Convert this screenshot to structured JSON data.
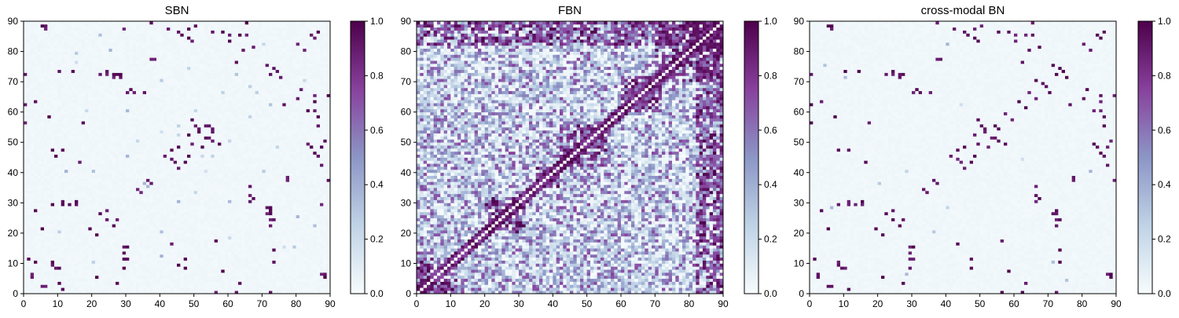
{
  "chart_data": [
    {
      "type": "heatmap",
      "title": "SBN",
      "xlim": [
        0,
        90
      ],
      "ylim": [
        0,
        90
      ],
      "x_ticks": [
        0,
        10,
        20,
        30,
        40,
        50,
        60,
        70,
        80,
        90
      ],
      "y_ticks": [
        0,
        10,
        20,
        30,
        40,
        50,
        60,
        70,
        80,
        90
      ],
      "colorbar": {
        "range": [
          0.0,
          1.0
        ],
        "ticks": [
          "0.0",
          "0.2",
          "0.4",
          "0.6",
          "0.8",
          "1.0"
        ]
      },
      "colormap": [
        "#f7fcfd",
        "#bfd3e6",
        "#8c96c6",
        "#88419d",
        "#4d004b"
      ],
      "density": "sparse",
      "strong_links": [
        [
          3,
          63
        ],
        [
          6,
          87
        ],
        [
          8,
          47
        ],
        [
          9,
          45
        ],
        [
          10,
          73
        ],
        [
          11,
          47
        ],
        [
          14,
          73
        ],
        [
          16,
          43
        ],
        [
          17,
          56
        ],
        [
          22,
          72
        ],
        [
          24,
          72
        ],
        [
          26,
          71
        ],
        [
          27,
          72
        ],
        [
          28,
          71
        ],
        [
          29,
          87
        ],
        [
          30,
          66
        ],
        [
          31,
          67
        ],
        [
          32,
          66
        ],
        [
          35,
          66
        ],
        [
          38,
          77
        ],
        [
          41,
          45
        ],
        [
          43,
          44
        ],
        [
          44,
          43
        ],
        [
          45,
          48
        ],
        [
          47,
          43
        ],
        [
          48,
          52
        ],
        [
          49,
          49
        ],
        [
          50,
          55
        ],
        [
          51,
          54
        ],
        [
          53,
          51
        ],
        [
          54,
          55
        ],
        [
          55,
          53
        ],
        [
          52,
          48
        ],
        [
          57,
          49
        ],
        [
          60,
          85
        ],
        [
          63,
          85
        ],
        [
          65,
          85
        ],
        [
          67,
          81
        ],
        [
          72,
          72
        ],
        [
          74,
          73
        ],
        [
          75,
          71
        ],
        [
          77,
          37
        ],
        [
          80,
          82
        ],
        [
          83,
          49
        ],
        [
          84,
          48
        ],
        [
          85,
          46
        ],
        [
          87,
          48
        ],
        [
          88,
          6
        ],
        [
          89,
          37
        ],
        [
          21,
          19
        ],
        [
          22,
          26
        ],
        [
          24,
          24
        ],
        [
          27,
          24
        ],
        [
          29,
          8
        ],
        [
          29,
          11
        ],
        [
          30,
          15
        ],
        [
          34,
          33
        ],
        [
          37,
          36
        ],
        [
          72,
          26
        ],
        [
          73,
          24
        ],
        [
          73,
          14
        ],
        [
          2,
          6
        ],
        [
          5,
          2
        ],
        [
          8,
          9
        ],
        [
          10,
          8
        ],
        [
          21,
          5
        ],
        [
          27,
          3
        ],
        [
          56,
          0
        ],
        [
          62,
          0
        ],
        [
          72,
          0
        ],
        [
          88,
          5
        ],
        [
          3,
          10
        ],
        [
          1,
          11
        ],
        [
          11,
          30
        ],
        [
          13,
          29
        ],
        [
          15,
          29
        ],
        [
          85,
          84
        ],
        [
          86,
          86
        ],
        [
          42,
          87
        ],
        [
          45,
          86
        ],
        [
          50,
          88
        ],
        [
          55,
          86
        ],
        [
          28,
          72
        ],
        [
          58,
          7
        ],
        [
          76,
          62
        ],
        [
          80,
          64
        ],
        [
          89,
          65
        ],
        [
          83,
          60
        ],
        [
          86,
          58
        ]
      ],
      "weak_links": [
        [
          15,
          76
        ],
        [
          18,
          60
        ],
        [
          20,
          10
        ],
        [
          25,
          80
        ],
        [
          33,
          50
        ],
        [
          40,
          20
        ],
        [
          45,
          52
        ],
        [
          55,
          45
        ],
        [
          60,
          30
        ],
        [
          66,
          58
        ],
        [
          70,
          40
        ],
        [
          74,
          48
        ],
        [
          79,
          15
        ],
        [
          82,
          70
        ],
        [
          12,
          40
        ],
        [
          30,
          45
        ],
        [
          36,
          35
        ],
        [
          50,
          60
        ],
        [
          53,
          40
        ],
        [
          62,
          72
        ],
        [
          68,
          66
        ],
        [
          85,
          22
        ]
      ]
    },
    {
      "type": "heatmap",
      "title": "FBN",
      "xlim": [
        0,
        90
      ],
      "ylim": [
        0,
        90
      ],
      "x_ticks": [
        0,
        10,
        20,
        30,
        40,
        50,
        60,
        70,
        80,
        90
      ],
      "y_ticks": [
        0,
        10,
        20,
        30,
        40,
        50,
        60,
        70,
        80,
        90
      ],
      "colorbar": {
        "range": [
          0.0,
          1.0
        ],
        "ticks": [
          "0.0",
          "0.2",
          "0.4",
          "0.6",
          "0.8",
          "1.0"
        ]
      },
      "colormap": [
        "#f7fcfd",
        "#bfd3e6",
        "#8c96c6",
        "#88419d",
        "#4d004b"
      ],
      "density": "dense",
      "strong_blocks": [
        [
          42,
          56,
          42,
          56
        ],
        [
          35,
          42,
          35,
          42
        ],
        [
          60,
          72,
          60,
          72
        ],
        [
          70,
          90,
          70,
          90
        ],
        [
          20,
          32,
          20,
          32
        ],
        [
          0,
          12,
          0,
          12
        ],
        [
          82,
          90,
          0,
          90
        ],
        [
          0,
          90,
          82,
          90
        ]
      ]
    },
    {
      "type": "heatmap",
      "title": "cross-modal BN",
      "xlim": [
        0,
        90
      ],
      "ylim": [
        0,
        90
      ],
      "x_ticks": [
        0,
        10,
        20,
        30,
        40,
        50,
        60,
        70,
        80,
        90
      ],
      "y_ticks": [
        0,
        10,
        20,
        30,
        40,
        50,
        60,
        70,
        80,
        90
      ],
      "colorbar": {
        "range": [
          0.0,
          1.0
        ],
        "ticks": [
          "0.0",
          "0.2",
          "0.4",
          "0.6",
          "0.8",
          "1.0"
        ]
      },
      "colormap": [
        "#f7fcfd",
        "#bfd3e6",
        "#8c96c6",
        "#88419d",
        "#4d004b"
      ],
      "density": "sparse",
      "strong_links": [
        [
          3,
          63
        ],
        [
          6,
          87
        ],
        [
          8,
          47
        ],
        [
          10,
          73
        ],
        [
          11,
          47
        ],
        [
          14,
          73
        ],
        [
          16,
          43
        ],
        [
          17,
          56
        ],
        [
          22,
          72
        ],
        [
          24,
          72
        ],
        [
          26,
          71
        ],
        [
          27,
          72
        ],
        [
          30,
          66
        ],
        [
          31,
          67
        ],
        [
          32,
          66
        ],
        [
          35,
          66
        ],
        [
          38,
          77
        ],
        [
          41,
          45
        ],
        [
          43,
          44
        ],
        [
          45,
          48
        ],
        [
          47,
          43
        ],
        [
          48,
          52
        ],
        [
          49,
          49
        ],
        [
          50,
          55
        ],
        [
          51,
          54
        ],
        [
          53,
          51
        ],
        [
          54,
          55
        ],
        [
          52,
          48
        ],
        [
          57,
          49
        ],
        [
          60,
          85
        ],
        [
          63,
          85
        ],
        [
          65,
          85
        ],
        [
          67,
          81
        ],
        [
          72,
          72
        ],
        [
          74,
          73
        ],
        [
          75,
          71
        ],
        [
          77,
          37
        ],
        [
          80,
          82
        ],
        [
          83,
          49
        ],
        [
          84,
          48
        ],
        [
          85,
          46
        ],
        [
          87,
          48
        ],
        [
          88,
          6
        ],
        [
          89,
          37
        ],
        [
          21,
          19
        ],
        [
          22,
          26
        ],
        [
          24,
          24
        ],
        [
          27,
          24
        ],
        [
          29,
          8
        ],
        [
          29,
          11
        ],
        [
          30,
          15
        ],
        [
          34,
          33
        ],
        [
          37,
          36
        ],
        [
          72,
          26
        ],
        [
          73,
          24
        ],
        [
          73,
          14
        ],
        [
          2,
          6
        ],
        [
          5,
          2
        ],
        [
          8,
          9
        ],
        [
          10,
          8
        ],
        [
          21,
          5
        ],
        [
          27,
          3
        ],
        [
          56,
          0
        ],
        [
          62,
          0
        ],
        [
          72,
          0
        ],
        [
          88,
          5
        ],
        [
          1,
          11
        ],
        [
          11,
          30
        ],
        [
          13,
          29
        ],
        [
          15,
          29
        ],
        [
          85,
          84
        ],
        [
          86,
          86
        ],
        [
          42,
          87
        ],
        [
          45,
          86
        ],
        [
          50,
          88
        ],
        [
          55,
          86
        ],
        [
          58,
          7
        ],
        [
          76,
          62
        ],
        [
          80,
          64
        ],
        [
          89,
          65
        ],
        [
          83,
          60
        ],
        [
          86,
          58
        ],
        [
          66,
          64
        ],
        [
          70,
          66
        ],
        [
          68,
          69
        ],
        [
          63,
          61
        ],
        [
          59,
          57
        ]
      ],
      "weak_links": [
        [
          4,
          75
        ],
        [
          28,
          6
        ],
        [
          44,
          62
        ],
        [
          71,
          10
        ],
        [
          82,
          40
        ],
        [
          40,
          28
        ],
        [
          36,
          20
        ]
      ]
    }
  ]
}
